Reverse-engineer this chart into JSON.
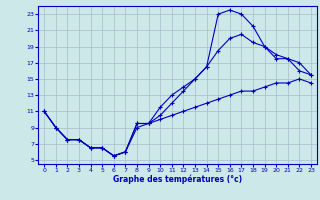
{
  "title": "Graphe des températures (°c)",
  "bg_color": "#cce8e8",
  "grid_color": "#aabbcc",
  "line_color": "#0000bb",
  "spine_color": "#0000bb",
  "xlim": [
    -0.5,
    23.5
  ],
  "ylim": [
    4.5,
    24.0
  ],
  "xticks": [
    0,
    1,
    2,
    3,
    4,
    5,
    6,
    7,
    8,
    9,
    10,
    11,
    12,
    13,
    14,
    15,
    16,
    17,
    18,
    19,
    20,
    21,
    22,
    23
  ],
  "yticks": [
    5,
    7,
    9,
    11,
    13,
    15,
    17,
    19,
    21,
    23
  ],
  "line1_x": [
    0,
    1,
    2,
    3,
    4,
    5,
    6,
    7,
    8,
    9,
    10,
    11,
    12,
    13,
    14,
    15,
    16,
    17,
    18,
    19,
    20,
    21,
    22,
    23
  ],
  "line1_y": [
    11,
    9,
    7.5,
    7.5,
    6.5,
    6.5,
    5.5,
    6.0,
    9.5,
    9.5,
    11.5,
    13.0,
    14.0,
    15.0,
    16.5,
    23.0,
    23.5,
    23.0,
    21.5,
    19.0,
    17.5,
    17.5,
    16.0,
    15.5
  ],
  "line2_x": [
    0,
    1,
    2,
    3,
    4,
    5,
    6,
    7,
    8,
    9,
    10,
    11,
    12,
    13,
    14,
    15,
    16,
    17,
    18,
    19,
    20,
    21,
    22,
    23
  ],
  "line2_y": [
    11,
    9,
    7.5,
    7.5,
    6.5,
    6.5,
    5.5,
    6.0,
    9.5,
    9.5,
    10.5,
    12.0,
    13.5,
    15.0,
    16.5,
    18.5,
    20.0,
    20.5,
    19.5,
    19.0,
    18.0,
    17.5,
    17.0,
    15.5
  ],
  "line3_x": [
    0,
    1,
    2,
    3,
    4,
    5,
    6,
    7,
    8,
    9,
    10,
    11,
    12,
    13,
    14,
    15,
    16,
    17,
    18,
    19,
    20,
    21,
    22,
    23
  ],
  "line3_y": [
    11,
    9,
    7.5,
    7.5,
    6.5,
    6.5,
    5.5,
    6.0,
    9.0,
    9.5,
    10.0,
    10.5,
    11.0,
    11.5,
    12.0,
    12.5,
    13.0,
    13.5,
    13.5,
    14.0,
    14.5,
    14.5,
    15.0,
    14.5
  ]
}
